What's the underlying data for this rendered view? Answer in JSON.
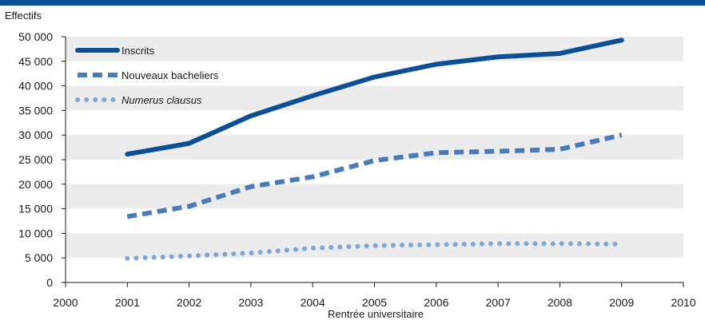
{
  "chart_data": {
    "type": "line",
    "title": "",
    "ylabel": "Effectifs",
    "xlabel": "Rentrée universitaire",
    "xlim": [
      2000,
      2010
    ],
    "ylim": [
      0,
      50000
    ],
    "x_ticks": [
      "2000",
      "2001",
      "2002",
      "2003",
      "2004",
      "2005",
      "2006",
      "2007",
      "2008",
      "2009",
      "2010"
    ],
    "y_ticks": [
      "0",
      "5 000",
      "10 000",
      "15 000",
      "20 000",
      "25 000",
      "30 000",
      "35 000",
      "40 000",
      "45 000",
      "50 000"
    ],
    "grid": "alternating horizontal bands",
    "legend_position": "top-left",
    "x": [
      2001,
      2002,
      2003,
      2004,
      2005,
      2006,
      2007,
      2008,
      2009
    ],
    "series": [
      {
        "name": "Inscrits",
        "style": "solid",
        "italic": false,
        "color": "#0d4f96",
        "values": [
          26100,
          28300,
          33900,
          38000,
          41800,
          44400,
          45900,
          46600,
          49300
        ]
      },
      {
        "name": "Nouveaux bacheliers",
        "style": "dashed",
        "italic": false,
        "color": "#4a7bb8",
        "values": [
          13400,
          15500,
          19500,
          21500,
          24800,
          26400,
          26700,
          27100,
          30000
        ]
      },
      {
        "name": "Numerus clausus",
        "style": "dotted",
        "italic": true,
        "color": "#7fa6d4",
        "values": [
          4900,
          5400,
          6000,
          7000,
          7500,
          7700,
          7900,
          7900,
          7800
        ]
      }
    ]
  },
  "colors": {
    "top_bar": "#0d4f96",
    "band": "#ececec"
  }
}
